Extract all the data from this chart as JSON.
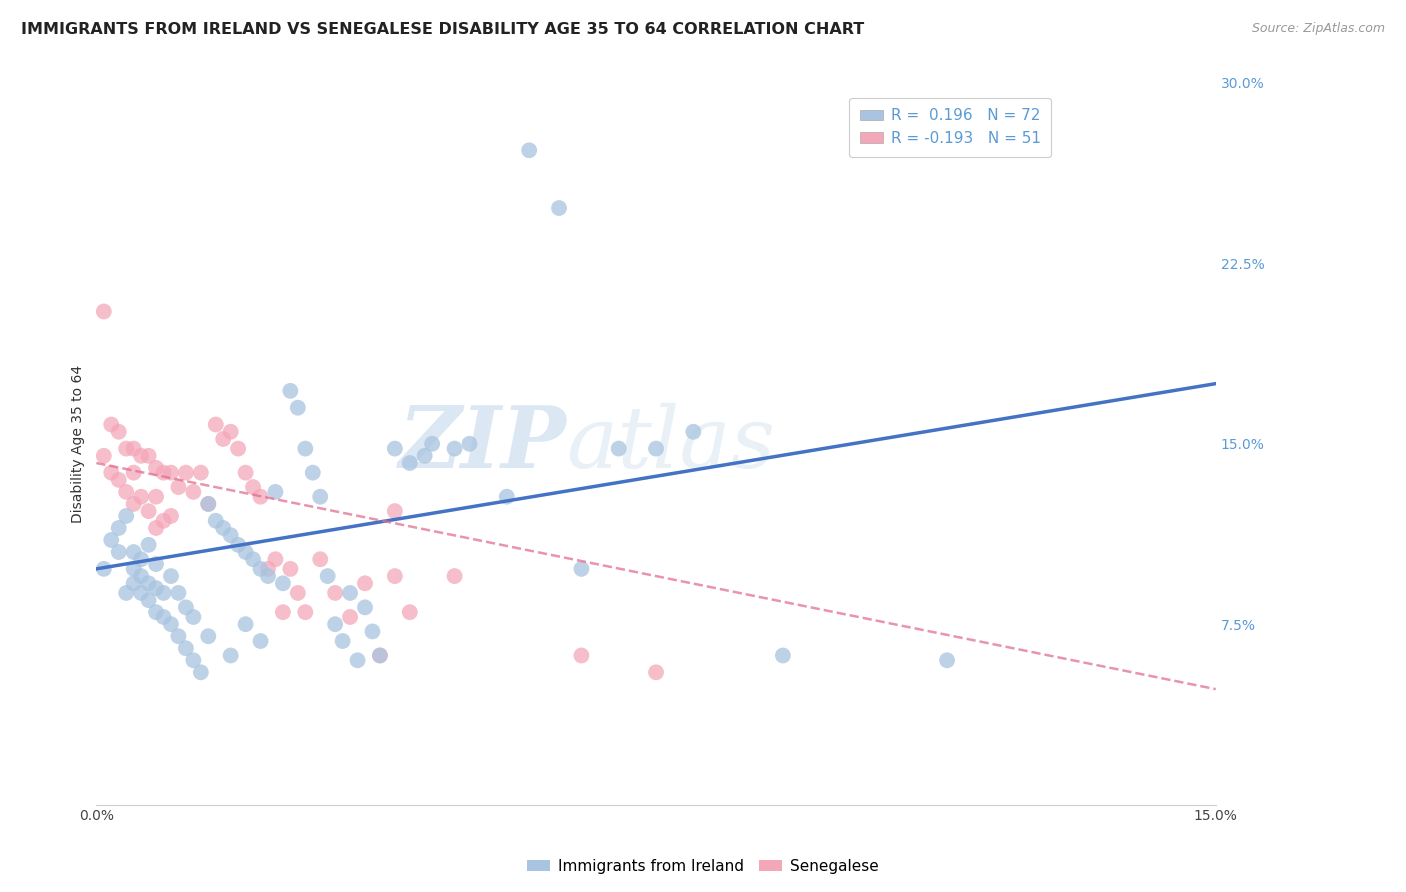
{
  "title": "IMMIGRANTS FROM IRELAND VS SENEGALESE DISABILITY AGE 35 TO 64 CORRELATION CHART",
  "source": "Source: ZipAtlas.com",
  "ylabel": "Disability Age 35 to 64",
  "xlim": [
    0.0,
    0.15
  ],
  "ylim": [
    0.0,
    0.3
  ],
  "yticks_right": [
    0.075,
    0.15,
    0.225,
    0.3
  ],
  "ytick_labels_right": [
    "7.5%",
    "15.0%",
    "22.5%",
    "30.0%"
  ],
  "ireland_R": 0.196,
  "ireland_N": 72,
  "senegalese_R": -0.193,
  "senegalese_N": 51,
  "ireland_color": "#a8c4e0",
  "senegalese_color": "#f4a7b9",
  "ireland_line_color": "#4472c4",
  "senegalese_line_color": "#e07090",
  "ireland_line_y0": 0.098,
  "ireland_line_y1": 0.175,
  "senegalese_line_y0": 0.142,
  "senegalese_line_y1": 0.048,
  "ireland_x": [
    0.001,
    0.002,
    0.003,
    0.003,
    0.004,
    0.004,
    0.005,
    0.005,
    0.005,
    0.006,
    0.006,
    0.006,
    0.007,
    0.007,
    0.007,
    0.008,
    0.008,
    0.008,
    0.009,
    0.009,
    0.01,
    0.01,
    0.011,
    0.011,
    0.012,
    0.012,
    0.013,
    0.013,
    0.014,
    0.015,
    0.015,
    0.016,
    0.017,
    0.018,
    0.018,
    0.019,
    0.02,
    0.02,
    0.021,
    0.022,
    0.022,
    0.023,
    0.024,
    0.025,
    0.026,
    0.027,
    0.028,
    0.029,
    0.03,
    0.031,
    0.032,
    0.033,
    0.034,
    0.035,
    0.036,
    0.037,
    0.038,
    0.04,
    0.042,
    0.044,
    0.045,
    0.048,
    0.05,
    0.055,
    0.058,
    0.062,
    0.065,
    0.07,
    0.075,
    0.08,
    0.092,
    0.114
  ],
  "ireland_y": [
    0.098,
    0.11,
    0.115,
    0.105,
    0.088,
    0.12,
    0.092,
    0.098,
    0.105,
    0.088,
    0.095,
    0.102,
    0.085,
    0.092,
    0.108,
    0.08,
    0.09,
    0.1,
    0.078,
    0.088,
    0.075,
    0.095,
    0.07,
    0.088,
    0.065,
    0.082,
    0.06,
    0.078,
    0.055,
    0.125,
    0.07,
    0.118,
    0.115,
    0.112,
    0.062,
    0.108,
    0.105,
    0.075,
    0.102,
    0.098,
    0.068,
    0.095,
    0.13,
    0.092,
    0.172,
    0.165,
    0.148,
    0.138,
    0.128,
    0.095,
    0.075,
    0.068,
    0.088,
    0.06,
    0.082,
    0.072,
    0.062,
    0.148,
    0.142,
    0.145,
    0.15,
    0.148,
    0.15,
    0.128,
    0.272,
    0.248,
    0.098,
    0.148,
    0.148,
    0.155,
    0.062,
    0.06
  ],
  "senegalese_x": [
    0.001,
    0.001,
    0.002,
    0.002,
    0.003,
    0.003,
    0.004,
    0.004,
    0.005,
    0.005,
    0.005,
    0.006,
    0.006,
    0.007,
    0.007,
    0.008,
    0.008,
    0.008,
    0.009,
    0.009,
    0.01,
    0.01,
    0.011,
    0.012,
    0.013,
    0.014,
    0.015,
    0.016,
    0.017,
    0.018,
    0.019,
    0.02,
    0.021,
    0.022,
    0.023,
    0.024,
    0.025,
    0.026,
    0.027,
    0.028,
    0.03,
    0.032,
    0.034,
    0.036,
    0.038,
    0.04,
    0.042,
    0.048,
    0.065,
    0.075,
    0.04
  ],
  "senegalese_y": [
    0.205,
    0.145,
    0.158,
    0.138,
    0.155,
    0.135,
    0.148,
    0.13,
    0.148,
    0.138,
    0.125,
    0.145,
    0.128,
    0.145,
    0.122,
    0.14,
    0.128,
    0.115,
    0.138,
    0.118,
    0.138,
    0.12,
    0.132,
    0.138,
    0.13,
    0.138,
    0.125,
    0.158,
    0.152,
    0.155,
    0.148,
    0.138,
    0.132,
    0.128,
    0.098,
    0.102,
    0.08,
    0.098,
    0.088,
    0.08,
    0.102,
    0.088,
    0.078,
    0.092,
    0.062,
    0.095,
    0.08,
    0.095,
    0.062,
    0.055,
    0.122
  ],
  "watermark_zip": "ZIP",
  "watermark_atlas": "atlas",
  "background_color": "#ffffff",
  "grid_color": "#cccccc",
  "title_fontsize": 11.5,
  "axis_label_fontsize": 10,
  "tick_fontsize": 10,
  "legend_fontsize": 11
}
